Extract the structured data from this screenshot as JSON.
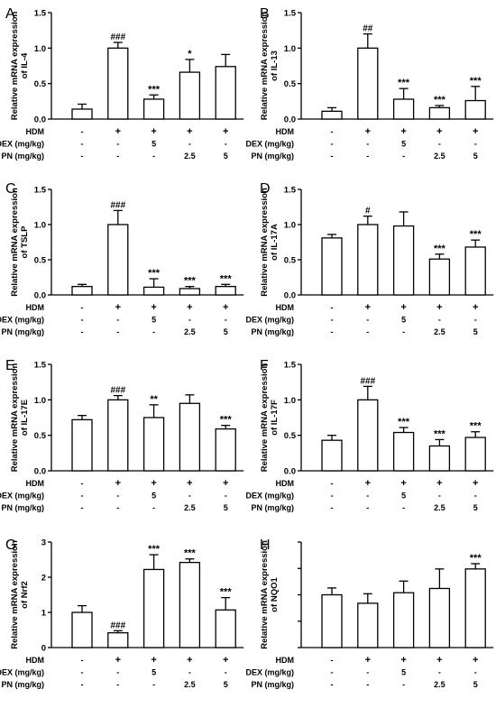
{
  "figure_title": "",
  "chart_data": [
    {
      "type": "bar",
      "panel_label": "A",
      "ylabel": [
        "Relative mRNA expression",
        "of IL-4"
      ],
      "ylim": [
        0,
        1.5
      ],
      "yticks": [
        0.0,
        0.5,
        1.0,
        1.5
      ],
      "tick_labels": [
        "0.0",
        "0.5",
        "1.0",
        "1.5"
      ],
      "categories": [
        "Control",
        "HDM",
        "HDM+DEX 5",
        "HDM+PN 2.5",
        "HDM+PN 5"
      ],
      "values": [
        0.14,
        1.0,
        0.28,
        0.66,
        0.74
      ],
      "errors": [
        0.07,
        0.08,
        0.06,
        0.18,
        0.17
      ],
      "annotations": [
        "",
        "###",
        "***",
        "*",
        ""
      ]
    },
    {
      "type": "bar",
      "panel_label": "B",
      "ylabel": [
        "Relative mRNA expression",
        "of IL-13"
      ],
      "ylim": [
        0,
        1.5
      ],
      "yticks": [
        0.0,
        0.5,
        1.0,
        1.5
      ],
      "tick_labels": [
        "0.0",
        "0.5",
        "1.0",
        "1.5"
      ],
      "categories": [
        "Control",
        "HDM",
        "HDM+DEX 5",
        "HDM+PN 2.5",
        "HDM+PN 5"
      ],
      "values": [
        0.11,
        1.0,
        0.28,
        0.16,
        0.26
      ],
      "errors": [
        0.05,
        0.2,
        0.15,
        0.03,
        0.2
      ],
      "annotations": [
        "",
        "##",
        "***",
        "***",
        "***"
      ]
    },
    {
      "type": "bar",
      "panel_label": "C",
      "ylabel": [
        "Relative mRNA expression",
        "of TSLP"
      ],
      "ylim": [
        0,
        1.5
      ],
      "yticks": [
        0.0,
        0.5,
        1.0,
        1.5
      ],
      "tick_labels": [
        "0.0",
        "0.5",
        "1.0",
        "1.5"
      ],
      "categories": [
        "Control",
        "HDM",
        "HDM+DEX 5",
        "HDM+PN 2.5",
        "HDM+PN 5"
      ],
      "values": [
        0.12,
        1.0,
        0.11,
        0.09,
        0.12
      ],
      "errors": [
        0.03,
        0.2,
        0.12,
        0.03,
        0.03
      ],
      "annotations": [
        "",
        "###",
        "***",
        "***",
        "***"
      ]
    },
    {
      "type": "bar",
      "panel_label": "D",
      "ylabel": [
        "Relative mRNA expression",
        "of IL-17A"
      ],
      "ylim": [
        0,
        1.5
      ],
      "yticks": [
        0.0,
        0.5,
        1.0,
        1.5
      ],
      "tick_labels": [
        "0.0",
        "0.5",
        "1.0",
        "1.5"
      ],
      "categories": [
        "Control",
        "HDM",
        "HDM+DEX 5",
        "HDM+PN 2.5",
        "HDM+PN 5"
      ],
      "values": [
        0.81,
        1.0,
        0.98,
        0.51,
        0.68
      ],
      "errors": [
        0.05,
        0.12,
        0.2,
        0.07,
        0.1
      ],
      "annotations": [
        "",
        "#",
        "",
        "***",
        "***"
      ]
    },
    {
      "type": "bar",
      "panel_label": "E",
      "ylabel": [
        "Relative mRNA expression",
        "of IL-17E"
      ],
      "ylim": [
        0,
        1.5
      ],
      "yticks": [
        0.0,
        0.5,
        1.0,
        1.5
      ],
      "tick_labels": [
        "0.0",
        "0.5",
        "1.0",
        "1.5"
      ],
      "categories": [
        "Control",
        "HDM",
        "HDM+DEX 5",
        "HDM+PN 2.5",
        "HDM+PN 5"
      ],
      "values": [
        0.72,
        1.0,
        0.75,
        0.95,
        0.59
      ],
      "errors": [
        0.06,
        0.06,
        0.18,
        0.12,
        0.05
      ],
      "annotations": [
        "",
        "###",
        "**",
        "",
        "***"
      ]
    },
    {
      "type": "bar",
      "panel_label": "F",
      "ylabel": [
        "Relative mRNA expression",
        "of IL-17F"
      ],
      "ylim": [
        0,
        1.5
      ],
      "yticks": [
        0.0,
        0.5,
        1.0,
        1.5
      ],
      "tick_labels": [
        "0.0",
        "0.5",
        "1.0",
        "1.5"
      ],
      "categories": [
        "Control",
        "HDM",
        "HDM+DEX 5",
        "HDM+PN 2.5",
        "HDM+PN 5"
      ],
      "values": [
        0.43,
        1.0,
        0.54,
        0.35,
        0.47
      ],
      "errors": [
        0.07,
        0.19,
        0.07,
        0.09,
        0.08
      ],
      "annotations": [
        "",
        "###",
        "***",
        "***",
        "***"
      ]
    },
    {
      "type": "bar",
      "panel_label": "G",
      "ylabel": [
        "Relative mRNA expression",
        "of Nrf2"
      ],
      "ylim": [
        0,
        3
      ],
      "yticks": [
        0,
        1,
        2,
        3
      ],
      "tick_labels": [
        "0",
        "1",
        "2",
        "3"
      ],
      "categories": [
        "Control",
        "HDM",
        "HDM+DEX 5",
        "HDM+PN 2.5",
        "HDM+PN 5"
      ],
      "values": [
        1.0,
        0.42,
        2.22,
        2.42,
        1.07
      ],
      "errors": [
        0.19,
        0.06,
        0.42,
        0.1,
        0.35
      ],
      "annotations": [
        "",
        "###",
        "***",
        "***",
        "***"
      ]
    },
    {
      "type": "bar",
      "panel_label": "H",
      "ylabel": [
        "Relative mRNA expression",
        "of NQO1"
      ],
      "ylim": [
        0,
        2.0
      ],
      "yticks": [
        0.0,
        0.5,
        1.0,
        1.5,
        2.0
      ],
      "tick_labels": [
        "",
        "",
        "",
        "",
        ""
      ],
      "categories": [
        "Control",
        "HDM",
        "HDM+DEX 5",
        "HDM+PN 2.5",
        "HDM+PN 5"
      ],
      "values": [
        1.0,
        0.84,
        1.04,
        1.12,
        1.49
      ],
      "errors": [
        0.13,
        0.18,
        0.22,
        0.37,
        0.1
      ],
      "annotations": [
        "",
        "",
        "",
        "",
        "***"
      ]
    }
  ],
  "treatment_table": {
    "rows": [
      {
        "label": "HDM",
        "marks": [
          "-",
          "+",
          "+",
          "+",
          "+"
        ]
      },
      {
        "label": "DEX (mg/kg)",
        "marks": [
          "-",
          "-",
          "5",
          "-",
          "-"
        ]
      },
      {
        "label": "PN (mg/kg)",
        "marks": [
          "-",
          "-",
          "-",
          "2.5",
          "5"
        ]
      }
    ]
  }
}
